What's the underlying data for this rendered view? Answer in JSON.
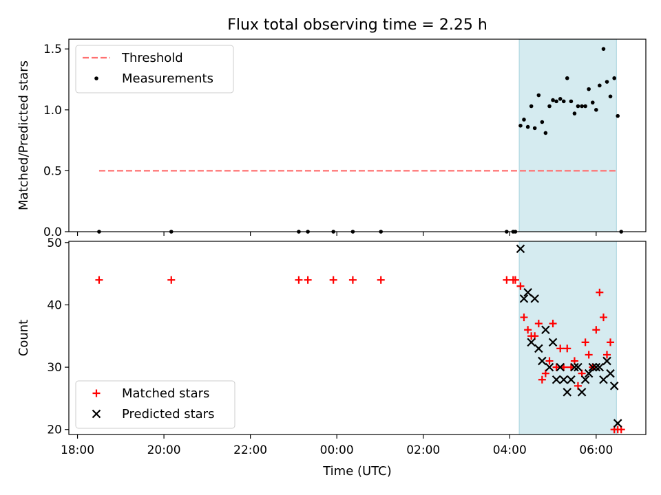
{
  "chart_data": {
    "title": "Flux total observing time = 2.25 h",
    "xlabel": "Time (UTC)",
    "x_unit": "hours since 18:00 UTC (continuing past midnight)",
    "xlim": [
      17.8,
      31.15
    ],
    "x_ticks": [
      {
        "x": 18,
        "label": "18:00"
      },
      {
        "x": 20,
        "label": "20:00"
      },
      {
        "x": 22,
        "label": "22:00"
      },
      {
        "x": 24,
        "label": "00:00"
      },
      {
        "x": 26,
        "label": "02:00"
      },
      {
        "x": 28,
        "label": "04:00"
      },
      {
        "x": 30,
        "label": "06:00"
      }
    ],
    "shaded_span": {
      "x_start": 28.22,
      "x_end": 30.47,
      "color": "#d5ebf0"
    },
    "panels": [
      {
        "type": "scatter",
        "ylabel": "Matched/Predicted stars",
        "ylim": [
          0,
          1.58
        ],
        "y_ticks": [
          {
            "y": 0,
            "label": "0.0"
          },
          {
            "y": 0.5,
            "label": "0.5"
          },
          {
            "y": 1.0,
            "label": "1.0"
          },
          {
            "y": 1.5,
            "label": "1.5"
          }
        ],
        "threshold": {
          "name": "Threshold",
          "y": 0.5,
          "x_range": [
            18.5,
            30.47
          ],
          "color": "#ff7070"
        },
        "series": [
          {
            "name": "Measurements",
            "color": "#000000",
            "marker": "dot",
            "x": [
              18.5,
              20.17,
              23.12,
              23.33,
              23.92,
              24.37,
              25.02,
              27.93,
              28.08,
              28.13,
              28.25,
              28.33,
              28.42,
              28.5,
              28.58,
              28.67,
              28.75,
              28.83,
              28.92,
              29.0,
              29.08,
              29.17,
              29.25,
              29.33,
              29.42,
              29.5,
              29.58,
              29.67,
              29.75,
              29.83,
              29.92,
              30.0,
              30.08,
              30.17,
              30.25,
              30.33,
              30.42,
              30.5,
              30.58
            ],
            "y": [
              0,
              0,
              0,
              0,
              0,
              0,
              0,
              0,
              0,
              0,
              0.87,
              0.92,
              0.86,
              1.03,
              0.85,
              1.12,
              0.9,
              0.81,
              1.03,
              1.08,
              1.07,
              1.09,
              1.07,
              1.26,
              1.07,
              0.97,
              1.03,
              1.03,
              1.03,
              1.17,
              1.06,
              1.0,
              1.2,
              1.5,
              1.23,
              1.11,
              1.26,
              0.95,
              0
            ]
          }
        ]
      },
      {
        "type": "scatter",
        "ylabel": "Count",
        "ylim": [
          19.2,
          50.2
        ],
        "y_ticks": [
          {
            "y": 20,
            "label": "20"
          },
          {
            "y": 30,
            "label": "30"
          },
          {
            "y": 40,
            "label": "40"
          },
          {
            "y": 50,
            "label": "50"
          }
        ],
        "series": [
          {
            "name": "Matched stars",
            "color": "#ff0000",
            "marker": "plus",
            "x": [
              18.5,
              20.17,
              23.12,
              23.33,
              23.92,
              24.37,
              25.02,
              27.93,
              28.08,
              28.13,
              28.25,
              28.33,
              28.42,
              28.5,
              28.58,
              28.67,
              28.75,
              28.83,
              28.92,
              29.0,
              29.08,
              29.17,
              29.25,
              29.33,
              29.42,
              29.5,
              29.58,
              29.67,
              29.75,
              29.83,
              29.92,
              30.0,
              30.08,
              30.17,
              30.25,
              30.33,
              30.42,
              30.5,
              30.58
            ],
            "y": [
              44,
              44,
              44,
              44,
              44,
              44,
              44,
              44,
              44,
              44,
              43,
              38,
              36,
              35,
              35,
              37,
              28,
              29,
              31,
              37,
              30,
              33,
              30,
              33,
              30,
              31,
              27,
              29,
              34,
              32,
              30,
              36,
              42,
              38,
              32,
              34,
              20,
              20,
              20
            ]
          },
          {
            "name": "Predicted stars",
            "color": "#000000",
            "marker": "x",
            "x": [
              28.25,
              28.33,
              28.42,
              28.5,
              28.58,
              28.67,
              28.75,
              28.83,
              28.92,
              29.0,
              29.08,
              29.17,
              29.25,
              29.33,
              29.42,
              29.5,
              29.58,
              29.67,
              29.75,
              29.83,
              29.92,
              30.0,
              30.08,
              30.17,
              30.25,
              30.33,
              30.42,
              30.5
            ],
            "y": [
              49,
              41,
              42,
              34,
              41,
              33,
              31,
              36,
              30,
              34,
              28,
              30,
              28,
              26,
              28,
              30,
              30,
              26,
              28,
              29,
              30,
              30,
              30,
              28,
              31,
              29,
              27,
              21
            ]
          }
        ]
      }
    ],
    "legends": [
      {
        "placement": "upper-left",
        "entries": [
          "Threshold",
          "Measurements"
        ]
      },
      {
        "placement": "lower-left",
        "entries": [
          "Matched stars",
          "Predicted stars"
        ]
      }
    ]
  }
}
